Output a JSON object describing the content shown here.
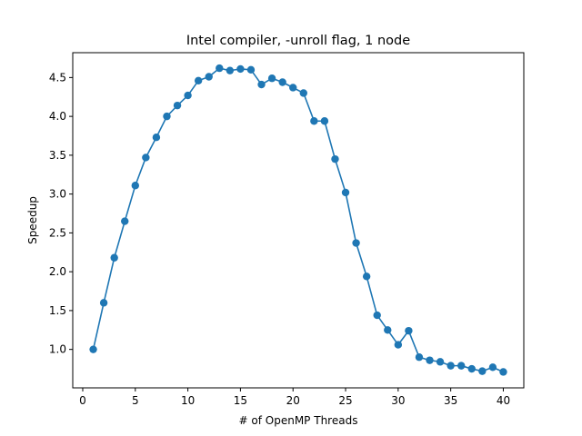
{
  "chart_data": {
    "type": "line",
    "title": "Intel compiler, -unroll flag, 1 node",
    "xlabel": "# of OpenMP Threads",
    "ylabel": "Speedup",
    "xlim": [
      -0.95,
      41.95
    ],
    "ylim": [
      0.505,
      4.82
    ],
    "xticks": [
      0,
      5,
      10,
      15,
      20,
      25,
      30,
      35,
      40
    ],
    "yticks": [
      1.0,
      1.5,
      2.0,
      2.5,
      3.0,
      3.5,
      4.0,
      4.5
    ],
    "xtick_labels": [
      "0",
      "5",
      "10",
      "15",
      "20",
      "25",
      "30",
      "35",
      "40"
    ],
    "ytick_labels": [
      "1.0",
      "1.5",
      "2.0",
      "2.5",
      "3.0",
      "3.5",
      "4.0",
      "4.5"
    ],
    "grid": false,
    "color": "#1f77b4",
    "marker": "circle",
    "series": [
      {
        "x": [
          1,
          2,
          3,
          4,
          5,
          6,
          7,
          8,
          9,
          10,
          11,
          12,
          13,
          14,
          15,
          16,
          17,
          18,
          19,
          20,
          21,
          22,
          23,
          24,
          25,
          26,
          27,
          28,
          29,
          30,
          31,
          32,
          33,
          34,
          35,
          36,
          37,
          38,
          39,
          40
        ],
        "values": [
          1.0,
          1.6,
          2.18,
          2.65,
          3.11,
          3.47,
          3.73,
          4.0,
          4.14,
          4.27,
          4.46,
          4.51,
          4.62,
          4.59,
          4.61,
          4.6,
          4.41,
          4.49,
          4.44,
          4.37,
          4.3,
          3.94,
          3.94,
          3.45,
          3.02,
          2.37,
          1.94,
          1.44,
          1.25,
          1.06,
          1.24,
          0.9,
          0.86,
          0.84,
          0.79,
          0.79,
          0.75,
          0.72,
          0.77,
          0.71
        ]
      }
    ]
  }
}
